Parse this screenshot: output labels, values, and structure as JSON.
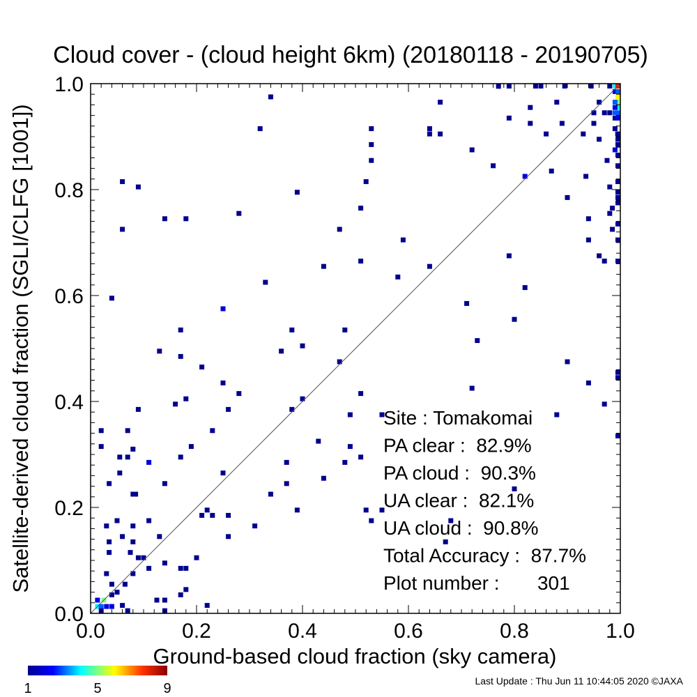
{
  "chart_data": {
    "type": "heatmap",
    "title": "Cloud cover - (cloud height 6km)  (20180118 - 20190705)",
    "xlabel": "Ground-based cloud fraction (sky camera)",
    "ylabel": "Satellite-derived cloud fraction (SGLI/CLFG [1001])",
    "xlim": [
      0.0,
      1.0
    ],
    "ylim": [
      0.0,
      1.0
    ],
    "x_ticks": [
      "0.0",
      "0.2",
      "0.4",
      "0.6",
      "0.8",
      "1.0"
    ],
    "y_ticks": [
      "0.0",
      "0.2",
      "0.4",
      "0.6",
      "0.8",
      "1.0"
    ],
    "grid": false,
    "diagonal_line": "y = x",
    "colorbar": {
      "min": 1,
      "max": 9,
      "tick_labels": [
        "1",
        "5",
        "9"
      ],
      "colormap": "rainbow (blue to red)"
    },
    "stats": [
      "Site : Tomakomai",
      "PA clear :  82.9%",
      "PA cloud :  90.3%",
      "UA clear :  82.1%",
      "UA cloud :  90.8%",
      "Total Accuracy :  87.7%",
      "Plot number :       301"
    ],
    "points": [
      [
        0.013,
        0.013,
        4
      ],
      [
        0.02,
        0.013,
        3
      ],
      [
        0.03,
        0.013,
        2
      ],
      [
        0.04,
        0.013,
        2
      ],
      [
        0.025,
        0.025,
        5
      ],
      [
        0.013,
        0.025,
        2
      ],
      [
        0.05,
        0.04,
        1
      ],
      [
        0.04,
        0.055,
        1
      ],
      [
        0.065,
        0.055,
        1
      ],
      [
        0.08,
        0.075,
        1
      ],
      [
        0.03,
        0.075,
        1
      ],
      [
        0.04,
        0.035,
        1
      ],
      [
        0.02,
        0.005,
        1
      ],
      [
        0.06,
        0.015,
        1
      ],
      [
        0.07,
        0.005,
        1
      ],
      [
        0.125,
        0.025,
        1
      ],
      [
        0.14,
        0.025,
        1
      ],
      [
        0.14,
        0.005,
        1
      ],
      [
        0.22,
        0.015,
        1
      ],
      [
        0.17,
        0.035,
        1
      ],
      [
        0.18,
        0.045,
        1
      ],
      [
        0.17,
        0.085,
        1
      ],
      [
        0.18,
        0.085,
        1
      ],
      [
        0.14,
        0.095,
        1
      ],
      [
        0.09,
        0.105,
        1
      ],
      [
        0.1,
        0.105,
        1
      ],
      [
        0.11,
        0.085,
        1
      ],
      [
        0.075,
        0.115,
        1
      ],
      [
        0.035,
        0.115,
        1
      ],
      [
        0.035,
        0.135,
        1
      ],
      [
        0.08,
        0.135,
        1
      ],
      [
        0.06,
        0.145,
        1
      ],
      [
        0.13,
        0.145,
        1
      ],
      [
        0.03,
        0.165,
        1
      ],
      [
        0.05,
        0.175,
        1
      ],
      [
        0.08,
        0.165,
        1
      ],
      [
        0.11,
        0.175,
        1
      ],
      [
        0.2,
        0.105,
        1
      ],
      [
        0.21,
        0.185,
        1
      ],
      [
        0.22,
        0.195,
        1
      ],
      [
        0.23,
        0.185,
        1
      ],
      [
        0.26,
        0.145,
        1
      ],
      [
        0.26,
        0.185,
        1
      ],
      [
        0.31,
        0.165,
        1
      ],
      [
        0.34,
        0.225,
        1
      ],
      [
        0.14,
        0.245,
        1
      ],
      [
        0.08,
        0.225,
        1
      ],
      [
        0.085,
        0.225,
        1
      ],
      [
        0.11,
        0.285,
        2
      ],
      [
        0.08,
        0.31,
        1
      ],
      [
        0.07,
        0.295,
        1
      ],
      [
        0.055,
        0.295,
        1
      ],
      [
        0.055,
        0.265,
        1
      ],
      [
        0.035,
        0.245,
        1
      ],
      [
        0.02,
        0.315,
        1
      ],
      [
        0.02,
        0.345,
        1
      ],
      [
        0.07,
        0.345,
        1
      ],
      [
        0.09,
        0.385,
        1
      ],
      [
        0.17,
        0.295,
        1
      ],
      [
        0.19,
        0.315,
        1
      ],
      [
        0.16,
        0.395,
        1
      ],
      [
        0.18,
        0.405,
        1
      ],
      [
        0.23,
        0.345,
        1
      ],
      [
        0.25,
        0.265,
        1
      ],
      [
        0.26,
        0.385,
        1
      ],
      [
        0.28,
        0.415,
        1
      ],
      [
        0.25,
        0.435,
        1
      ],
      [
        0.21,
        0.465,
        1
      ],
      [
        0.17,
        0.485,
        1
      ],
      [
        0.13,
        0.495,
        1
      ],
      [
        0.17,
        0.535,
        1
      ],
      [
        0.25,
        0.575,
        2
      ],
      [
        0.04,
        0.595,
        1
      ],
      [
        0.36,
        0.495,
        1
      ],
      [
        0.38,
        0.535,
        1
      ],
      [
        0.4,
        0.505,
        1
      ],
      [
        0.4,
        0.405,
        1
      ],
      [
        0.38,
        0.385,
        1
      ],
      [
        0.37,
        0.285,
        1
      ],
      [
        0.37,
        0.245,
        1
      ],
      [
        0.39,
        0.195,
        1
      ],
      [
        0.44,
        0.255,
        1
      ],
      [
        0.43,
        0.325,
        1
      ],
      [
        0.48,
        0.285,
        1
      ],
      [
        0.49,
        0.315,
        1
      ],
      [
        0.51,
        0.295,
        1
      ],
      [
        0.47,
        0.475,
        1
      ],
      [
        0.48,
        0.535,
        1
      ],
      [
        0.49,
        0.375,
        1
      ],
      [
        0.51,
        0.415,
        1
      ],
      [
        0.52,
        0.195,
        1
      ],
      [
        0.53,
        0.175,
        1
      ],
      [
        0.55,
        0.195,
        1
      ],
      [
        0.55,
        0.375,
        1
      ],
      [
        0.58,
        0.635,
        1
      ],
      [
        0.59,
        0.705,
        1
      ],
      [
        0.51,
        0.665,
        1
      ],
      [
        0.44,
        0.655,
        1
      ],
      [
        0.47,
        0.725,
        1
      ],
      [
        0.33,
        0.625,
        1
      ],
      [
        0.28,
        0.755,
        1
      ],
      [
        0.39,
        0.795,
        1
      ],
      [
        0.14,
        0.745,
        1
      ],
      [
        0.18,
        0.745,
        1
      ],
      [
        0.06,
        0.725,
        1
      ],
      [
        0.06,
        0.815,
        1
      ],
      [
        0.09,
        0.805,
        1
      ],
      [
        0.32,
        0.915,
        1
      ],
      [
        0.34,
        0.975,
        1
      ],
      [
        0.51,
        0.765,
        1
      ],
      [
        0.52,
        0.815,
        1
      ],
      [
        0.53,
        0.855,
        1
      ],
      [
        0.53,
        0.885,
        1
      ],
      [
        0.53,
        0.915,
        1
      ],
      [
        0.64,
        0.655,
        1
      ],
      [
        0.64,
        0.905,
        1
      ],
      [
        0.64,
        0.915,
        1
      ],
      [
        0.66,
        0.905,
        1
      ],
      [
        0.66,
        0.965,
        1
      ],
      [
        0.71,
        0.585,
        1
      ],
      [
        0.72,
        0.875,
        1
      ],
      [
        0.73,
        0.515,
        1
      ],
      [
        0.76,
        0.845,
        1
      ],
      [
        0.72,
        0.425,
        1
      ],
      [
        0.67,
        0.135,
        1
      ],
      [
        0.68,
        0.175,
        1
      ],
      [
        0.79,
        0.675,
        1
      ],
      [
        0.79,
        0.935,
        1
      ],
      [
        0.77,
        0.995,
        1
      ],
      [
        0.79,
        1.005,
        1
      ],
      [
        0.82,
        0.825,
        2
      ],
      [
        0.82,
        0.615,
        1
      ],
      [
        0.8,
        0.555,
        1
      ],
      [
        0.8,
        0.235,
        1
      ],
      [
        0.83,
        0.925,
        1
      ],
      [
        0.83,
        0.955,
        1
      ],
      [
        0.84,
        1.0,
        1
      ],
      [
        0.85,
        1.0,
        1
      ],
      [
        0.86,
        0.905,
        1
      ],
      [
        0.87,
        0.835,
        1
      ],
      [
        0.88,
        0.965,
        1
      ],
      [
        0.89,
        0.925,
        1
      ],
      [
        0.88,
        0.375,
        1
      ],
      [
        0.9,
        0.475,
        1
      ],
      [
        0.9,
        0.785,
        1
      ],
      [
        0.93,
        0.905,
        1
      ],
      [
        0.94,
        0.705,
        1
      ],
      [
        0.94,
        0.435,
        1
      ],
      [
        0.95,
        0.925,
        1
      ],
      [
        0.95,
        0.945,
        1
      ],
      [
        0.96,
        0.675,
        1
      ],
      [
        0.96,
        0.895,
        1
      ],
      [
        0.96,
        0.965,
        1
      ],
      [
        0.97,
        0.395,
        1
      ],
      [
        0.97,
        0.665,
        1
      ],
      [
        0.97,
        0.945,
        1
      ],
      [
        0.98,
        0.755,
        1
      ],
      [
        0.98,
        0.945,
        1
      ],
      [
        0.985,
        0.765,
        1
      ],
      [
        0.99,
        0.875,
        2
      ],
      [
        0.99,
        0.915,
        1
      ],
      [
        0.99,
        0.935,
        1
      ],
      [
        0.995,
        0.905,
        1
      ],
      [
        0.99,
        0.985,
        2
      ],
      [
        1.0,
        0.985,
        3
      ],
      [
        0.98,
        1.0,
        1
      ],
      [
        0.99,
        1.0,
        4
      ],
      [
        1.0,
        1.0,
        8
      ],
      [
        1.0,
        0.975,
        6
      ],
      [
        1.0,
        0.965,
        5
      ],
      [
        1.0,
        0.955,
        4
      ],
      [
        1.0,
        0.945,
        3
      ],
      [
        0.99,
        0.965,
        3
      ],
      [
        0.99,
        0.955,
        2
      ],
      [
        0.99,
        0.945,
        3
      ],
      [
        0.995,
        0.935,
        2
      ],
      [
        1.0,
        0.905,
        1
      ],
      [
        1.0,
        0.895,
        1
      ],
      [
        1.0,
        0.885,
        1
      ],
      [
        1.0,
        0.865,
        1
      ],
      [
        1.0,
        0.845,
        1
      ],
      [
        1.0,
        0.815,
        1
      ],
      [
        1.0,
        0.795,
        1
      ],
      [
        1.0,
        0.785,
        1
      ],
      [
        1.0,
        0.775,
        1
      ],
      [
        1.0,
        0.735,
        1
      ],
      [
        1.0,
        0.705,
        1
      ],
      [
        1.0,
        0.665,
        1
      ],
      [
        1.0,
        0.455,
        1
      ],
      [
        1.0,
        0.445,
        1
      ],
      [
        1.0,
        0.335,
        1
      ],
      [
        0.945,
        1.0,
        1
      ],
      [
        0.895,
        1.0,
        1
      ],
      [
        0.935,
        0.825,
        1
      ],
      [
        0.94,
        0.745,
        1
      ],
      [
        0.98,
        0.805,
        1
      ],
      [
        0.985,
        0.725,
        1
      ],
      [
        0.975,
        0.855,
        1
      ]
    ]
  },
  "footer": {
    "last_update": "Last Update : Thu Jun 11 10:44:05 2020  ©JAXA"
  },
  "colors": {
    "diagonal": "#555555",
    "axis": "#000000"
  }
}
